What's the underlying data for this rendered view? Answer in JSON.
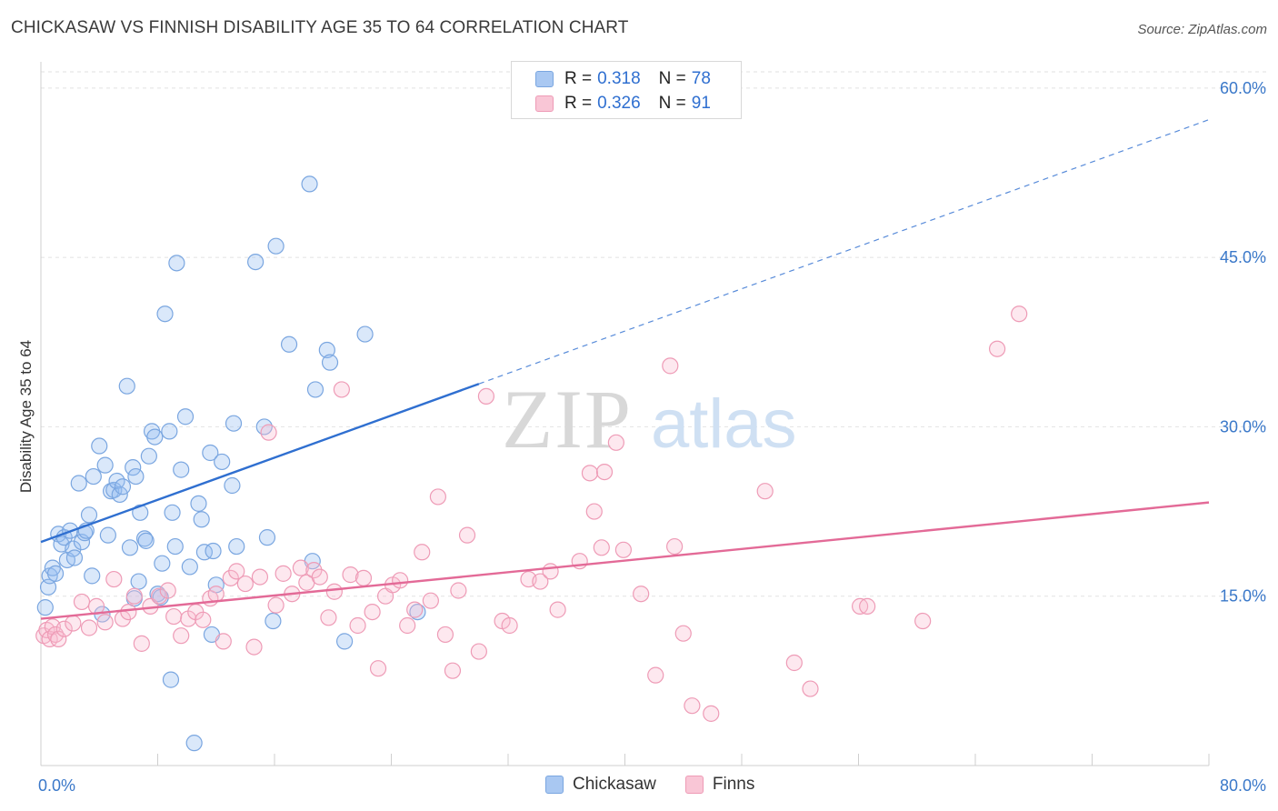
{
  "header": {
    "title": "CHICKASAW VS FINNISH DISABILITY AGE 35 TO 64 CORRELATION CHART",
    "source": "Source: ZipAtlas.com"
  },
  "watermark": {
    "zip": "ZIP",
    "atlas": "atlas"
  },
  "legend": {
    "rows": [
      {
        "r_label": "R =",
        "r_value": "0.318",
        "n_label": "N =",
        "n_value": "78",
        "color": "#a9c8f2",
        "border": "#7aa6e0"
      },
      {
        "r_label": "R =",
        "r_value": "0.326",
        "n_label": "N =",
        "n_value": "91",
        "color": "#f9c6d6",
        "border": "#ee9bb6"
      }
    ]
  },
  "bottom_legend": {
    "items": [
      {
        "label": "Chickasaw",
        "color": "#a9c8f2",
        "border": "#7aa6e0"
      },
      {
        "label": "Finns",
        "color": "#f9c6d6",
        "border": "#ee9bb6"
      }
    ]
  },
  "chart_data": {
    "type": "scatter",
    "title": "CHICKASAW VS FINNISH DISABILITY AGE 35 TO 64 CORRELATION CHART",
    "xlabel": "",
    "ylabel": "Disability Age 35 to 64",
    "xlim": [
      0,
      80
    ],
    "ylim": [
      0,
      62
    ],
    "x_tick_labels": [
      {
        "value": 0,
        "label": "0.0%"
      },
      {
        "value": 80,
        "label": "80.0%"
      }
    ],
    "y_tick_labels": [
      {
        "value": 15,
        "label": "15.0%"
      },
      {
        "value": 30,
        "label": "30.0%"
      },
      {
        "value": 45,
        "label": "45.0%"
      },
      {
        "value": 60,
        "label": "60.0%"
      }
    ],
    "grid": true,
    "legend_position": "top-center",
    "series": [
      {
        "name": "Chickasaw",
        "color": "#7aa6e0",
        "fill": "rgba(150,190,240,0.35)",
        "trend": {
          "x0": 0,
          "y0": 19.8,
          "x1": 30,
          "y1": 33.8,
          "x_dash_end": 80,
          "y_dash_end": 57.2,
          "color": "#2f6fd0"
        },
        "points": [
          [
            0.3,
            14.0
          ],
          [
            0.5,
            15.8
          ],
          [
            0.6,
            16.8
          ],
          [
            0.8,
            17.5
          ],
          [
            1.0,
            17.0
          ],
          [
            1.2,
            20.5
          ],
          [
            1.4,
            19.6
          ],
          [
            1.6,
            20.2
          ],
          [
            1.8,
            18.2
          ],
          [
            2.0,
            20.8
          ],
          [
            2.2,
            19.2
          ],
          [
            2.3,
            18.4
          ],
          [
            2.6,
            25.0
          ],
          [
            2.8,
            19.8
          ],
          [
            3.0,
            20.6
          ],
          [
            3.1,
            20.8
          ],
          [
            3.3,
            22.2
          ],
          [
            3.5,
            16.8
          ],
          [
            3.6,
            25.6
          ],
          [
            4.0,
            28.3
          ],
          [
            4.2,
            13.4
          ],
          [
            4.4,
            26.6
          ],
          [
            4.6,
            20.4
          ],
          [
            4.8,
            24.3
          ],
          [
            5.0,
            24.4
          ],
          [
            5.2,
            25.2
          ],
          [
            5.4,
            24.0
          ],
          [
            5.6,
            24.7
          ],
          [
            5.9,
            33.6
          ],
          [
            6.1,
            19.3
          ],
          [
            6.3,
            26.4
          ],
          [
            6.5,
            25.6
          ],
          [
            6.7,
            16.3
          ],
          [
            6.8,
            22.4
          ],
          [
            7.1,
            20.1
          ],
          [
            7.2,
            19.9
          ],
          [
            7.4,
            27.4
          ],
          [
            7.6,
            29.6
          ],
          [
            7.8,
            29.1
          ],
          [
            8.0,
            15.2
          ],
          [
            8.2,
            14.9
          ],
          [
            8.3,
            17.9
          ],
          [
            8.5,
            40.0
          ],
          [
            8.8,
            29.6
          ],
          [
            8.9,
            7.6
          ],
          [
            9.0,
            22.4
          ],
          [
            9.2,
            19.4
          ],
          [
            9.3,
            44.5
          ],
          [
            9.6,
            26.2
          ],
          [
            9.9,
            30.9
          ],
          [
            10.2,
            17.6
          ],
          [
            10.5,
            2.0
          ],
          [
            10.8,
            23.2
          ],
          [
            11.0,
            21.8
          ],
          [
            11.2,
            18.9
          ],
          [
            11.6,
            27.7
          ],
          [
            11.7,
            11.6
          ],
          [
            11.8,
            19.0
          ],
          [
            12.0,
            16.0
          ],
          [
            12.4,
            26.9
          ],
          [
            13.1,
            24.8
          ],
          [
            13.2,
            30.3
          ],
          [
            13.4,
            19.4
          ],
          [
            14.7,
            44.6
          ],
          [
            15.3,
            30.0
          ],
          [
            15.5,
            20.2
          ],
          [
            15.9,
            12.8
          ],
          [
            16.1,
            46.0
          ],
          [
            17.0,
            37.3
          ],
          [
            18.4,
            51.5
          ],
          [
            18.6,
            18.1
          ],
          [
            18.8,
            33.3
          ],
          [
            19.6,
            36.8
          ],
          [
            19.8,
            35.7
          ],
          [
            20.8,
            11.0
          ],
          [
            22.2,
            38.2
          ],
          [
            25.8,
            13.6
          ],
          [
            6.4,
            14.8
          ]
        ]
      },
      {
        "name": "Finns",
        "color": "#ee9bb6",
        "fill": "rgba(250,190,210,0.35)",
        "trend": {
          "x0": 0,
          "y0": 13.0,
          "x1": 80,
          "y1": 23.3,
          "color": "#e36a97"
        },
        "points": [
          [
            0.2,
            11.5
          ],
          [
            0.4,
            12.0
          ],
          [
            0.6,
            11.2
          ],
          [
            0.8,
            12.3
          ],
          [
            1.0,
            11.6
          ],
          [
            1.2,
            11.2
          ],
          [
            1.6,
            12.1
          ],
          [
            2.2,
            12.6
          ],
          [
            2.8,
            14.5
          ],
          [
            3.3,
            12.2
          ],
          [
            3.8,
            14.1
          ],
          [
            4.4,
            12.7
          ],
          [
            5.0,
            16.5
          ],
          [
            5.6,
            13.0
          ],
          [
            6.0,
            13.6
          ],
          [
            6.4,
            15.0
          ],
          [
            6.9,
            10.8
          ],
          [
            7.5,
            14.1
          ],
          [
            8.1,
            15.0
          ],
          [
            8.7,
            15.5
          ],
          [
            9.1,
            13.2
          ],
          [
            9.6,
            11.5
          ],
          [
            10.1,
            13.0
          ],
          [
            10.6,
            13.6
          ],
          [
            11.1,
            12.9
          ],
          [
            11.6,
            14.8
          ],
          [
            12.0,
            15.2
          ],
          [
            12.5,
            11.0
          ],
          [
            13.0,
            16.6
          ],
          [
            13.4,
            17.2
          ],
          [
            14.0,
            16.1
          ],
          [
            14.6,
            10.5
          ],
          [
            15.0,
            16.7
          ],
          [
            15.6,
            29.5
          ],
          [
            16.1,
            14.2
          ],
          [
            16.6,
            17.0
          ],
          [
            17.2,
            15.2
          ],
          [
            17.8,
            17.5
          ],
          [
            18.2,
            16.2
          ],
          [
            18.7,
            17.3
          ],
          [
            19.1,
            16.7
          ],
          [
            19.7,
            13.1
          ],
          [
            20.1,
            15.4
          ],
          [
            20.6,
            33.3
          ],
          [
            21.2,
            16.9
          ],
          [
            21.7,
            12.4
          ],
          [
            22.1,
            16.6
          ],
          [
            22.7,
            13.6
          ],
          [
            23.1,
            8.6
          ],
          [
            23.6,
            15.0
          ],
          [
            24.1,
            16.0
          ],
          [
            24.6,
            16.4
          ],
          [
            25.1,
            12.4
          ],
          [
            25.6,
            13.8
          ],
          [
            26.1,
            18.9
          ],
          [
            26.7,
            14.6
          ],
          [
            27.2,
            23.8
          ],
          [
            27.7,
            11.6
          ],
          [
            28.2,
            8.4
          ],
          [
            28.6,
            15.5
          ],
          [
            29.2,
            20.4
          ],
          [
            30.0,
            10.1
          ],
          [
            30.5,
            32.7
          ],
          [
            31.6,
            12.8
          ],
          [
            32.1,
            12.4
          ],
          [
            33.4,
            16.5
          ],
          [
            34.2,
            16.3
          ],
          [
            34.9,
            17.2
          ],
          [
            35.4,
            13.8
          ],
          [
            36.9,
            18.1
          ],
          [
            37.6,
            25.9
          ],
          [
            37.9,
            22.5
          ],
          [
            38.4,
            19.3
          ],
          [
            38.6,
            26.0
          ],
          [
            39.4,
            28.6
          ],
          [
            39.9,
            19.1
          ],
          [
            41.1,
            15.2
          ],
          [
            42.1,
            8.0
          ],
          [
            43.1,
            35.4
          ],
          [
            43.4,
            19.4
          ],
          [
            44.0,
            11.7
          ],
          [
            44.6,
            5.3
          ],
          [
            45.9,
            4.6
          ],
          [
            49.6,
            24.3
          ],
          [
            51.6,
            9.1
          ],
          [
            52.7,
            6.8
          ],
          [
            56.1,
            14.1
          ],
          [
            56.6,
            14.1
          ],
          [
            60.4,
            12.8
          ],
          [
            65.5,
            36.9
          ],
          [
            67.0,
            40.0
          ]
        ]
      }
    ]
  }
}
